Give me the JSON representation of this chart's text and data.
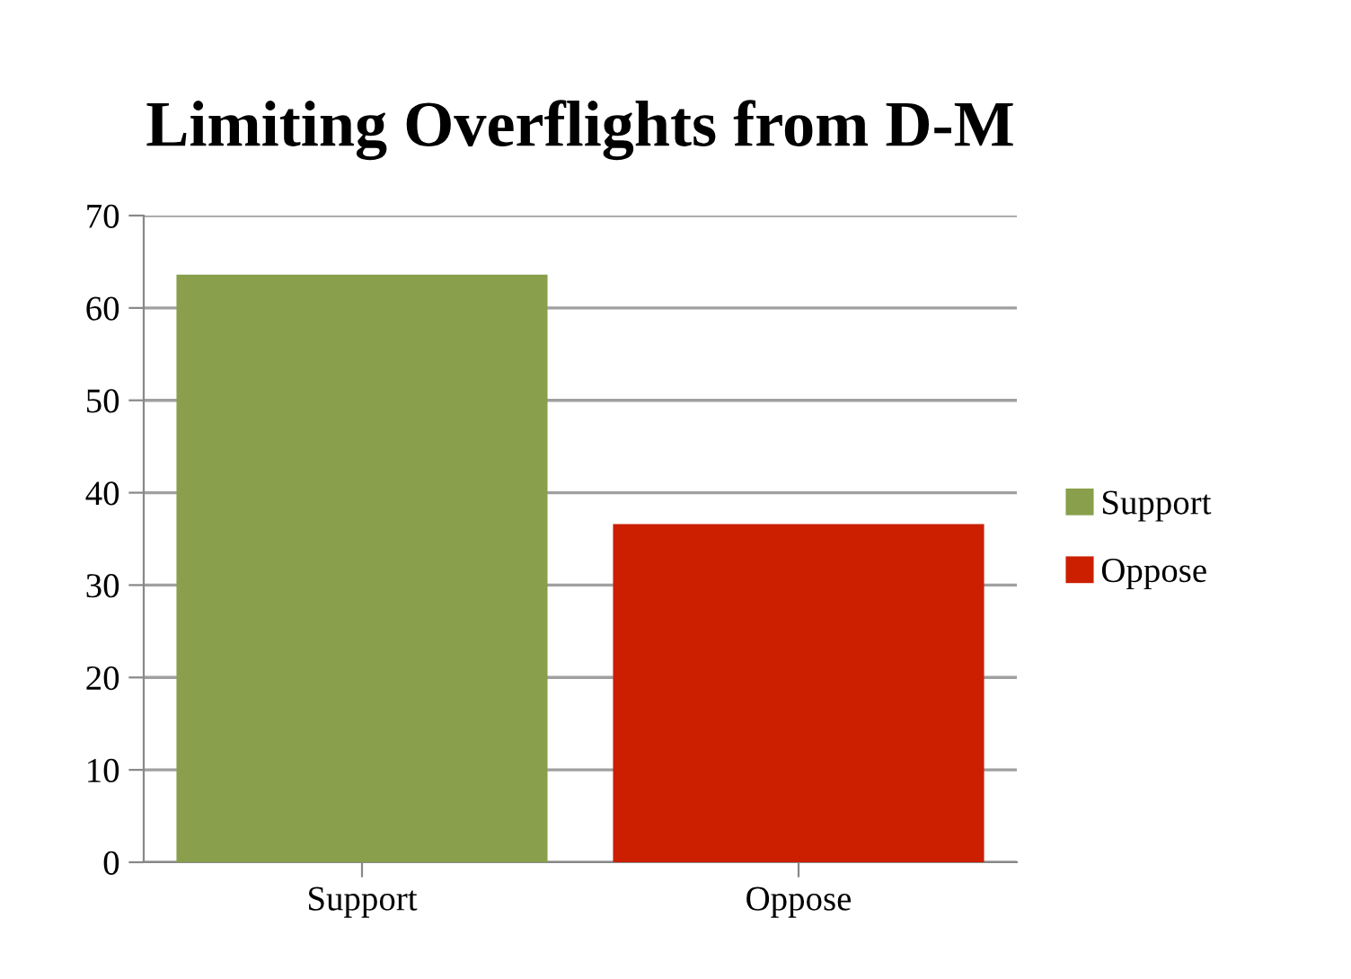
{
  "chart_data": {
    "type": "bar",
    "title": "Limiting Overflights from D-M",
    "categories": [
      "Support",
      "Oppose"
    ],
    "series": [
      {
        "name": "Support",
        "color": "#8a9f4b",
        "values": [
          63.6,
          null
        ]
      },
      {
        "name": "Oppose",
        "color": "#cc1f00",
        "values": [
          null,
          36.6
        ]
      }
    ],
    "ylim": [
      0,
      70
    ],
    "yticks": [
      0,
      10,
      20,
      30,
      40,
      50,
      60,
      70
    ],
    "grid": "y",
    "legend": "right"
  }
}
